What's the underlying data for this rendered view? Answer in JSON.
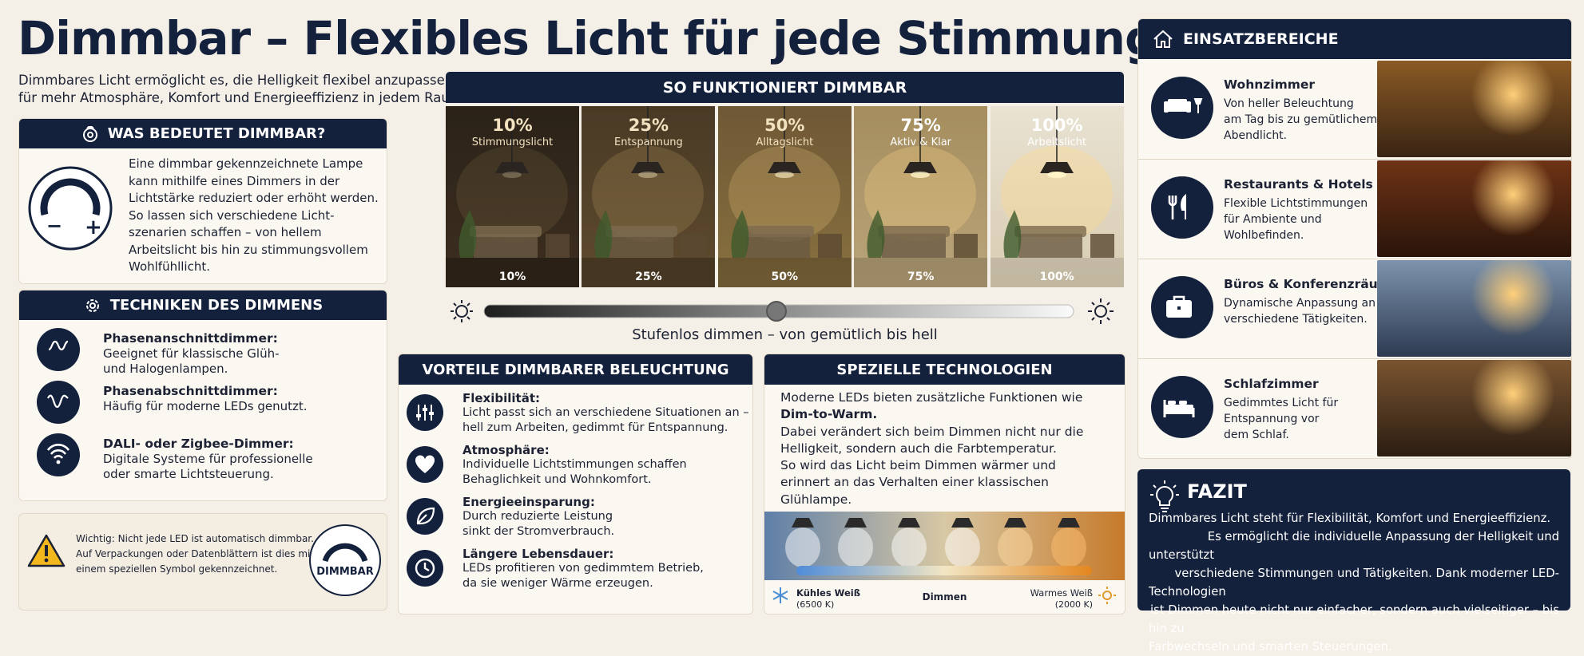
{
  "header": {
    "title": "Dimmbar – Flexibles Licht für jede Stimmung",
    "intro": "Dimmbares Licht ermöglicht es, die Helligkeit flexibel anzupassen –\nfür mehr Atmosphäre, Komfort und Energieeffizienz in jedem Raum."
  },
  "was_bedeutet": {
    "title": "WAS BEDEUTET DIMMBAR?",
    "text": "Eine dimmbar gekennzeichnete Lampe\nkann mithilfe eines Dimmers in der\nLichtstärke reduziert oder erhöht werden.\nSo lassen sich verschiedene Licht-\nszenarien schaffen – von hellem\nArbeitslicht bis hin zu stimmungsvollem\nWohlfühllicht."
  },
  "techniken": {
    "title": "TECHNIKEN DES DIMMENS",
    "items": [
      {
        "name": "Phasenanschnittdimmer:",
        "text": "Geeignet für klassische Glüh-\nund Halogenlampen."
      },
      {
        "name": "Phasenabschnittdimmer:",
        "text": "Häufig für moderne LEDs genutzt."
      },
      {
        "name": "DALI- oder Zigbee-Dimmer:",
        "text": "Digitale Systeme für professionelle\noder smarte Lichtsteuerung."
      }
    ]
  },
  "hinweis": {
    "text": "Wichtig: Nicht jede LED ist automatisch dimmbar.\nAuf Verpackungen oder Datenblättern ist dies mit\neinem speziellen Symbol gekennzeichnet.",
    "symbol": "DIMMBAR"
  },
  "funktion": {
    "title": "SO FUNKTIONIERT DIMMBAR",
    "levels": [
      {
        "percent": "10%",
        "label": "Stimmungslicht"
      },
      {
        "percent": "25%",
        "label": "Entspannung"
      },
      {
        "percent": "50%",
        "label": "Alltagslicht"
      },
      {
        "percent": "75%",
        "label": "Aktiv & Klar"
      },
      {
        "percent": "100%",
        "label": "Arbeitslicht"
      }
    ],
    "caption": "Stufenlos dimmen – von gemütlich bis hell"
  },
  "vorteile": {
    "title": "VORTEILE DIMMBARER BELEUCHTUNG",
    "items": [
      {
        "name": "Flexibilität:",
        "text": "Licht passt sich an verschiedene Situationen an –\nhell zum Arbeiten, gedimmt für Entspannung."
      },
      {
        "name": "Atmosphäre:",
        "text": "Individuelle Lichtstimmungen schaffen\nBehaglichkeit und Wohnkomfort."
      },
      {
        "name": "Energieeinsparung:",
        "text": "Durch reduzierte Leistung\nsinkt der Stromverbrauch."
      },
      {
        "name": "Längere Lebensdauer:",
        "text": "LEDs profitieren von gedimmtem Betrieb,\nda sie weniger Wärme erzeugen."
      }
    ]
  },
  "spezielle": {
    "title": "SPEZIELLE TECHNOLOGIEN",
    "text_before": "Moderne LEDs bieten zusätzliche Funktionen wie",
    "highlight": "Dim-to-Warm.",
    "text_after": "Dabei verändert sich beim Dimmen nicht nur die\nHelligkeit, sondern auch die Farbtemperatur.\nSo wird das Licht beim Dimmen wärmer und\nerinnert an das Verhalten einer klassischen\nGlühlampe.",
    "cool": "Kühles Weiß",
    "cool_k": "(6500 K)",
    "mid": "Dimmen",
    "warm": "Warmes Weiß",
    "warm_k": "(2000 K)"
  },
  "einsatz": {
    "title": "EINSATZBEREICHE",
    "items": [
      {
        "name": "Wohnzimmer",
        "text": "Von heller Beleuchtung\nam Tag bis zu gemütlichem\nAbendlicht."
      },
      {
        "name": "Restaurants & Hotels",
        "text": "Flexible Lichtstimmungen\nfür Ambiente und\nWohlbefinden."
      },
      {
        "name": "Büros & Konferenzräume",
        "text": "Dynamische Anpassung an\nverschiedene Tätigkeiten."
      },
      {
        "name": "Schlafzimmer",
        "text": "Gedimmtes Licht für\nEntspannung vor\ndem Schlaf."
      }
    ]
  },
  "fazit": {
    "title": "FAZIT",
    "text": "Dimmbares Licht steht für Flexibilität, Komfort und Energieeffizienz.\nEs ermöglicht die individuelle Anpassung der Helligkeit und unterstützt\nverschiedene Stimmungen und Tätigkeiten. Dank moderner LED-Technologien\nist Dimmen heute nicht nur einfacher, sondern auch vielseitiger – bis hin zu\nFarbwechseln und smarten Steuerungen."
  }
}
